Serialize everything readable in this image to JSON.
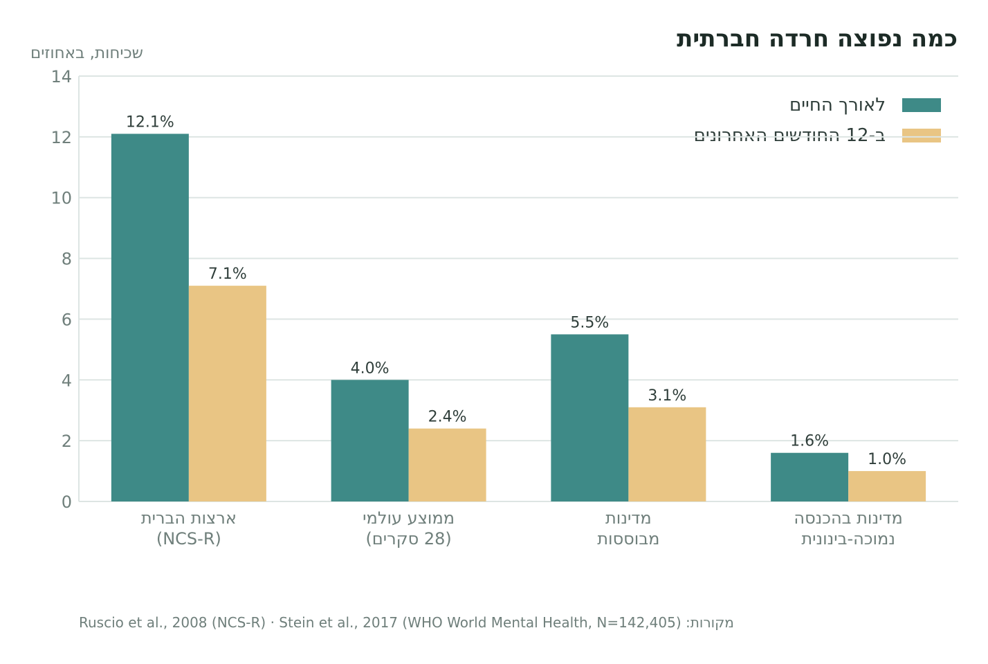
{
  "title": "כמה נפוצה חרדה חברתית",
  "source": "Ruscio et al., 2008 (NCS-R) · Stein et al., 2017 (WHO World Mental Health, N=142,405) :מקורות",
  "chart_data": {
    "type": "bar",
    "title": "כמה נפוצה חרדה חברתית",
    "xlabel": "",
    "ylabel": "שכיחות, באחוזים",
    "ylim": [
      0,
      14
    ],
    "yticks": [
      0,
      2,
      4,
      6,
      8,
      10,
      12,
      14
    ],
    "grid": true,
    "legend_position": "top-right",
    "categories": [
      [
        "ארצות הברית",
        "(NCS-R)"
      ],
      [
        "ממוצע עולמי",
        "(28 סקרים)"
      ],
      [
        "מדינות",
        "מבוססות"
      ],
      [
        "מדינות בהכנסה",
        "נמוכה-בינונית"
      ]
    ],
    "series": [
      {
        "name": "לאורך החיים",
        "color": "#3e8a87",
        "values": [
          12.1,
          4.0,
          5.5,
          1.6
        ],
        "labels": [
          "12.1%",
          "4.0%",
          "5.5%",
          "1.6%"
        ]
      },
      {
        "name": "ב-12 החודשים האחרונים",
        "color": "#e9c584",
        "values": [
          7.1,
          2.4,
          3.1,
          1.0
        ],
        "labels": [
          "7.1%",
          "2.4%",
          "3.1%",
          "1.0%"
        ]
      }
    ]
  }
}
